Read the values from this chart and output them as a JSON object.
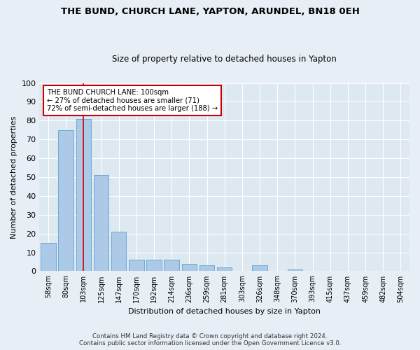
{
  "title": "THE BUND, CHURCH LANE, YAPTON, ARUNDEL, BN18 0EH",
  "subtitle": "Size of property relative to detached houses in Yapton",
  "xlabel": "Distribution of detached houses by size in Yapton",
  "ylabel": "Number of detached properties",
  "bins": [
    "58sqm",
    "80sqm",
    "103sqm",
    "125sqm",
    "147sqm",
    "170sqm",
    "192sqm",
    "214sqm",
    "236sqm",
    "259sqm",
    "281sqm",
    "303sqm",
    "326sqm",
    "348sqm",
    "370sqm",
    "393sqm",
    "415sqm",
    "437sqm",
    "459sqm",
    "482sqm",
    "504sqm"
  ],
  "values": [
    15,
    75,
    81,
    51,
    21,
    6,
    6,
    6,
    4,
    3,
    2,
    0,
    3,
    0,
    1,
    0,
    0,
    0,
    0,
    0,
    0
  ],
  "bar_color": "#adc9e8",
  "bar_edge_color": "#6aaad4",
  "annotation_text": "THE BUND CHURCH LANE: 100sqm\n← 27% of detached houses are smaller (71)\n72% of semi-detached houses are larger (188) →",
  "annotation_box_color": "#ffffff",
  "annotation_box_edge": "#cc0000",
  "vline_color": "#cc0000",
  "background_color": "#dde8f0",
  "fig_background_color": "#e8eef5",
  "grid_color": "#ffffff",
  "ylim": [
    0,
    100
  ],
  "yticks": [
    0,
    10,
    20,
    30,
    40,
    50,
    60,
    70,
    80,
    90,
    100
  ],
  "footer1": "Contains HM Land Registry data © Crown copyright and database right 2024.",
  "footer2": "Contains public sector information licensed under the Open Government Licence v3.0."
}
